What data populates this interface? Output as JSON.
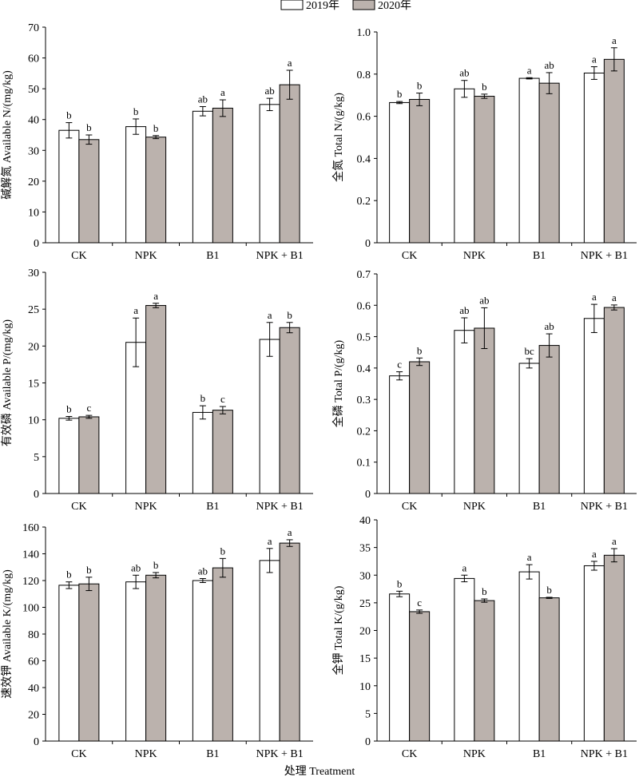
{
  "legend": {
    "position": "top-center",
    "items": [
      "2019年",
      "2020年"
    ]
  },
  "colors": {
    "s2019": "#ffffff",
    "s2020": "#bbb2ad",
    "stroke": "#000000"
  },
  "x_axis_title": "处理 Treatment",
  "chart_data": [
    {
      "type": "bar",
      "ylabel": "碱解氮 Available N/(mg/kg)",
      "categories": [
        "CK",
        "NPK",
        "B1",
        "NPK + B1"
      ],
      "ylim": [
        0,
        70
      ],
      "yticks": [
        "0",
        "10",
        "20",
        "30",
        "40",
        "50",
        "60",
        "70"
      ],
      "series": [
        {
          "name": "2019年",
          "values": [
            36.5,
            37.7,
            42.7,
            44.9
          ],
          "errors": [
            2.5,
            2.5,
            1.5,
            2.0
          ],
          "labels": [
            "b",
            "b",
            "ab",
            "ab"
          ]
        },
        {
          "name": "2020年",
          "values": [
            33.5,
            34.3,
            43.7,
            51.3
          ],
          "errors": [
            1.5,
            0.5,
            2.7,
            4.7
          ],
          "labels": [
            "b",
            "b",
            "a",
            "a"
          ]
        }
      ]
    },
    {
      "type": "bar",
      "ylabel": "全氮 Total N/(g/kg)",
      "categories": [
        "CK",
        "NPK",
        "B1",
        "NPK + B1"
      ],
      "ylim": [
        0,
        1.0
      ],
      "yticks": [
        "0",
        "0.2",
        "0.4",
        "0.6",
        "0.8",
        "1.0"
      ],
      "series": [
        {
          "name": "2019年",
          "values": [
            0.665,
            0.73,
            0.78,
            0.805
          ],
          "errors": [
            0.005,
            0.04,
            0.003,
            0.03
          ],
          "labels": [
            "b",
            "ab",
            "a",
            "a"
          ]
        },
        {
          "name": "2020年",
          "values": [
            0.68,
            0.695,
            0.757,
            0.87
          ],
          "errors": [
            0.03,
            0.01,
            0.05,
            0.055
          ],
          "labels": [
            "b",
            "b",
            "ab",
            "a"
          ]
        }
      ]
    },
    {
      "type": "bar",
      "ylabel": "有效磷 Available P/(mg/kg)",
      "categories": [
        "CK",
        "NPK",
        "B1",
        "NPK + B1"
      ],
      "ylim": [
        0,
        30
      ],
      "yticks": [
        "0",
        "5",
        "10",
        "15",
        "20",
        "25",
        "30"
      ],
      "series": [
        {
          "name": "2019年",
          "values": [
            10.2,
            20.5,
            11.0,
            20.9
          ],
          "errors": [
            0.25,
            3.3,
            0.9,
            2.3
          ],
          "labels": [
            "b",
            "a",
            "b",
            "a"
          ]
        },
        {
          "name": "2020年",
          "values": [
            10.4,
            25.5,
            11.3,
            22.5
          ],
          "errors": [
            0.2,
            0.3,
            0.5,
            0.7
          ],
          "labels": [
            "c",
            "a",
            "c",
            "b"
          ]
        }
      ]
    },
    {
      "type": "bar",
      "ylabel": "全磷 Total P/(g/kg)",
      "categories": [
        "CK",
        "NPK",
        "B1",
        "NPK + B1"
      ],
      "ylim": [
        0,
        0.7
      ],
      "yticks": [
        "0",
        "0.1",
        "0.2",
        "0.3",
        "0.4",
        "0.5",
        "0.6",
        "0.7"
      ],
      "series": [
        {
          "name": "2019年",
          "values": [
            0.375,
            0.52,
            0.415,
            0.558
          ],
          "errors": [
            0.013,
            0.04,
            0.015,
            0.045
          ],
          "labels": [
            "c",
            "ab",
            "bc",
            "a"
          ]
        },
        {
          "name": "2020年",
          "values": [
            0.42,
            0.527,
            0.472,
            0.593
          ],
          "errors": [
            0.012,
            0.065,
            0.037,
            0.008
          ],
          "labels": [
            "b",
            "ab",
            "ab",
            "a"
          ]
        }
      ]
    },
    {
      "type": "bar",
      "ylabel": "速效钾 Available K/(mg/kg)",
      "categories": [
        "CK",
        "NPK",
        "B1",
        "NPK + B1"
      ],
      "ylim": [
        0,
        160
      ],
      "yticks": [
        "0",
        "20",
        "40",
        "60",
        "80",
        "100",
        "120",
        "140",
        "160"
      ],
      "series": [
        {
          "name": "2019年",
          "values": [
            116.5,
            119.0,
            120.0,
            135.0
          ],
          "errors": [
            2.5,
            5.0,
            1.5,
            9.0
          ],
          "labels": [
            "b",
            "ab",
            "ab",
            "a"
          ]
        },
        {
          "name": "2020年",
          "values": [
            117.5,
            124.0,
            129.5,
            148.0
          ],
          "errors": [
            5.0,
            2.0,
            7.0,
            2.5
          ],
          "labels": [
            "b",
            "b",
            "b",
            "a"
          ]
        }
      ]
    },
    {
      "type": "bar",
      "ylabel": "全钾 Total K/(g/kg)",
      "categories": [
        "CK",
        "NPK",
        "B1",
        "NPK + B1"
      ],
      "ylim": [
        0,
        40
      ],
      "yticks": [
        "0",
        "5",
        "10",
        "15",
        "20",
        "25",
        "30",
        "35",
        "40"
      ],
      "series": [
        {
          "name": "2019年",
          "values": [
            26.6,
            29.4,
            30.6,
            31.7
          ],
          "errors": [
            0.5,
            0.6,
            1.3,
            0.8
          ],
          "labels": [
            "b",
            "a",
            "a",
            "a"
          ]
        },
        {
          "name": "2020年",
          "values": [
            23.4,
            25.4,
            25.9,
            33.6
          ],
          "errors": [
            0.3,
            0.3,
            0.1,
            1.2
          ],
          "labels": [
            "c",
            "b",
            "b",
            "a"
          ]
        }
      ]
    }
  ]
}
